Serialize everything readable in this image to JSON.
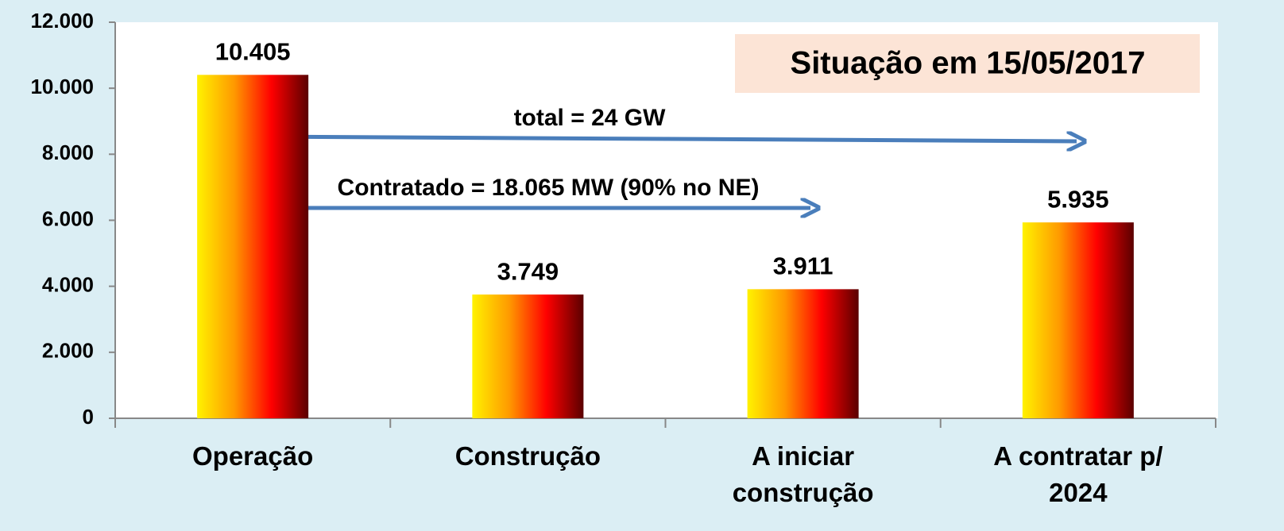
{
  "chart_data": {
    "type": "bar",
    "title": "Situação em 15/05/2017",
    "annotations": [
      "total = 24 GW",
      "Contratado = 18.065 MW (90% no NE)"
    ],
    "categories": [
      "Operação",
      "Construção",
      "A iniciar construção",
      "A contratar p/ 2024"
    ],
    "values": [
      10405,
      3749,
      3911,
      5935
    ],
    "value_labels": [
      "10.405",
      "3.749",
      "3.911",
      "5.935"
    ],
    "color": [
      "#fff200",
      "#ff9900",
      "#ff0000",
      "#5a0000"
    ],
    "ylim": [
      0,
      12000
    ],
    "yticks": [
      0,
      {
        "value": 2000,
        "label": "2.000"
      },
      {
        "value": 4000,
        "label": "4.000"
      },
      {
        "value": 6000,
        "label": "6.000"
      },
      {
        "value": 8000,
        "label": "8.000"
      },
      {
        "value": 10000,
        "label": "10.000"
      },
      {
        "value": 12000,
        "label": "12.000"
      }
    ],
    "grid": false
  }
}
